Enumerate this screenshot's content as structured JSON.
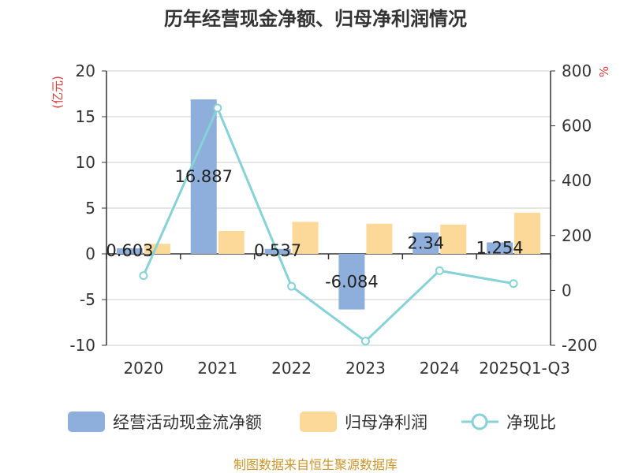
{
  "chart_data": {
    "type": "bar",
    "title": "历年经营现金净额、归母净利润情况",
    "categories": [
      "2020",
      "2021",
      "2022",
      "2023",
      "2024",
      "2025Q1-Q3"
    ],
    "series": [
      {
        "name": "经营活动现金流净额",
        "type": "bar",
        "axis": "left",
        "color": "#8eaedc",
        "values": [
          0.603,
          16.887,
          0.537,
          -6.084,
          2.34,
          1.254
        ],
        "labels": [
          "0.603",
          "16.887",
          "0.537",
          "-6.084",
          "2.34",
          "1.254"
        ]
      },
      {
        "name": "归母净利润",
        "type": "bar",
        "axis": "left",
        "color": "#fdd999",
        "values": [
          1.1,
          2.5,
          3.5,
          3.3,
          3.2,
          4.5
        ]
      },
      {
        "name": "净现比",
        "type": "line",
        "axis": "right",
        "color": "#86d2d6",
        "values": [
          54,
          665,
          15,
          -185,
          72,
          25
        ]
      }
    ],
    "y_left": {
      "label": "(亿元)",
      "min": -10,
      "max": 20,
      "ticks": [
        20,
        15,
        10,
        5,
        0,
        -5,
        -10
      ],
      "tick_labels": [
        "20",
        "15",
        "10",
        "5",
        "0",
        "-5",
        "-10"
      ]
    },
    "y_right": {
      "label": "%",
      "min": -200,
      "max": 800,
      "ticks": [
        800,
        600,
        400,
        200,
        0,
        -200
      ],
      "tick_labels": [
        "800",
        "600",
        "400",
        "200",
        "0",
        "-200"
      ]
    },
    "legend_position": "bottom",
    "grid": true
  },
  "colors": {
    "label_red": "#d93a3a",
    "source_gold": "#c8962c",
    "grid": "#cccccc",
    "axis": "#333333"
  },
  "source": "制图数据来自恒生聚源数据库"
}
